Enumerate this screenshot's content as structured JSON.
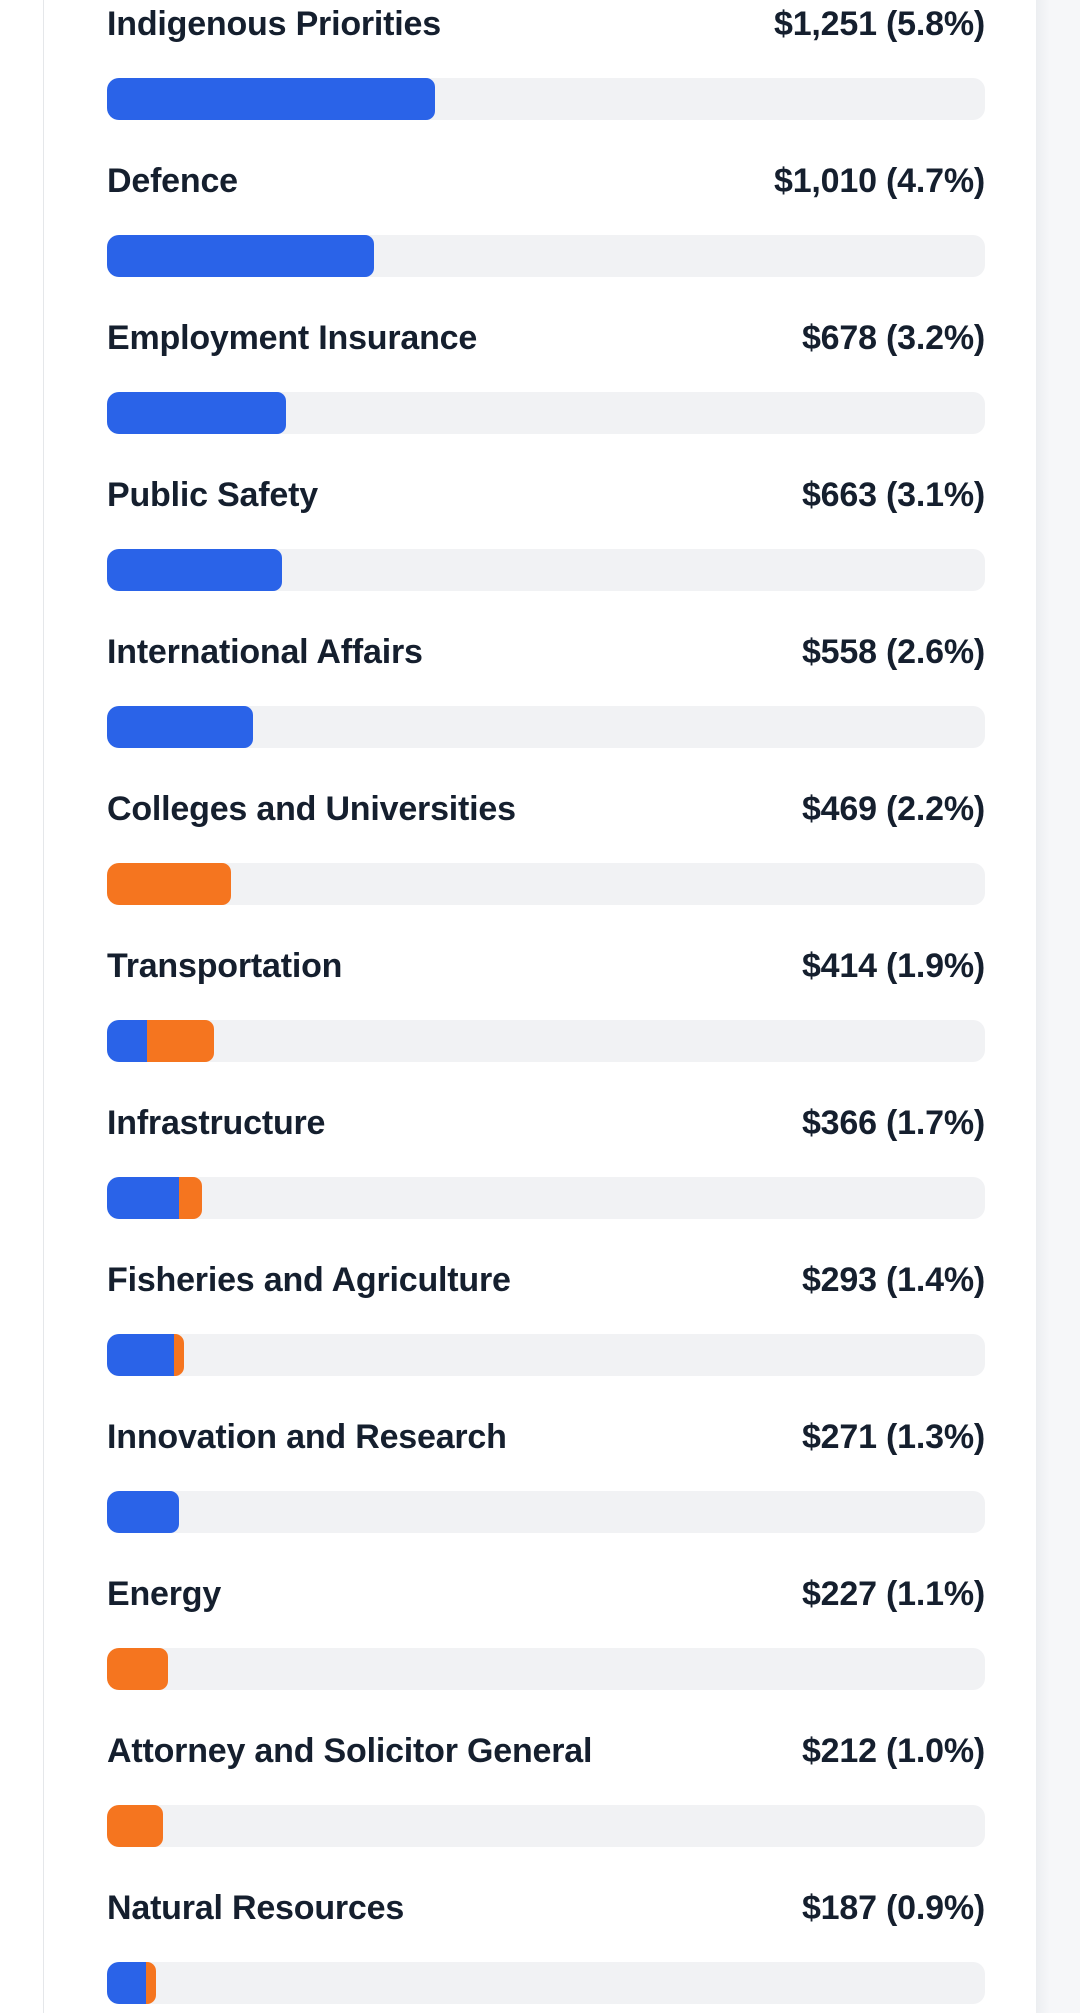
{
  "colors": {
    "blue": "#2a63e8",
    "orange": "#f5751f",
    "track": "#f1f2f4",
    "label_text": "#151f2e",
    "card_background": "#ffffff",
    "card_border": "#e5e7ea",
    "page_gutter": "#f6f7f9"
  },
  "rows": [
    {
      "label": "Indigenous Priorities",
      "value_text": "$1,251 (5.8%)",
      "segments": [
        {
          "color": "blue",
          "width_pct": 37.4
        }
      ]
    },
    {
      "label": "Defence",
      "value_text": "$1,010 (4.7%)",
      "segments": [
        {
          "color": "blue",
          "width_pct": 30.4
        }
      ]
    },
    {
      "label": "Employment Insurance",
      "value_text": "$678 (3.2%)",
      "segments": [
        {
          "color": "blue",
          "width_pct": 20.4
        }
      ]
    },
    {
      "label": "Public Safety",
      "value_text": "$663 (3.1%)",
      "segments": [
        {
          "color": "blue",
          "width_pct": 19.9
        }
      ]
    },
    {
      "label": "International Affairs",
      "value_text": "$558 (2.6%)",
      "segments": [
        {
          "color": "blue",
          "width_pct": 16.6
        }
      ]
    },
    {
      "label": "Colleges and Universities",
      "value_text": "$469 (2.2%)",
      "segments": [
        {
          "color": "orange",
          "width_pct": 14.1
        }
      ]
    },
    {
      "label": "Transportation",
      "value_text": "$414 (1.9%)",
      "segments": [
        {
          "color": "blue",
          "width_pct": 4.6
        },
        {
          "color": "orange",
          "width_pct": 7.6
        }
      ]
    },
    {
      "label": "Infrastructure",
      "value_text": "$366 (1.7%)",
      "segments": [
        {
          "color": "blue",
          "width_pct": 8.2
        },
        {
          "color": "orange",
          "width_pct": 2.6
        }
      ]
    },
    {
      "label": "Fisheries and Agriculture",
      "value_text": "$293 (1.4%)",
      "segments": [
        {
          "color": "blue",
          "width_pct": 7.6
        },
        {
          "color": "orange",
          "width_pct": 1.2
        }
      ]
    },
    {
      "label": "Innovation and Research",
      "value_text": "$271 (1.3%)",
      "segments": [
        {
          "color": "blue",
          "width_pct": 8.2
        }
      ]
    },
    {
      "label": "Energy",
      "value_text": "$227 (1.1%)",
      "segments": [
        {
          "color": "orange",
          "width_pct": 6.9
        }
      ]
    },
    {
      "label": "Attorney and Solicitor General",
      "value_text": "$212 (1.0%)",
      "segments": [
        {
          "color": "orange",
          "width_pct": 6.4
        }
      ]
    },
    {
      "label": "Natural Resources",
      "value_text": "$187 (0.9%)",
      "segments": [
        {
          "color": "blue",
          "width_pct": 4.4
        },
        {
          "color": "orange",
          "width_pct": 1.2
        }
      ]
    }
  ],
  "chart_data": {
    "type": "bar",
    "orientation": "horizontal",
    "categories": [
      "Indigenous Priorities",
      "Defence",
      "Employment Insurance",
      "Public Safety",
      "International Affairs",
      "Colleges and Universities",
      "Transportation",
      "Infrastructure",
      "Fisheries and Agriculture",
      "Innovation and Research",
      "Energy",
      "Attorney and Solicitor General",
      "Natural Resources"
    ],
    "dollar_values": [
      1251,
      1010,
      678,
      663,
      558,
      469,
      414,
      366,
      293,
      271,
      227,
      212,
      187
    ],
    "pct_of_total": [
      5.8,
      4.7,
      3.2,
      3.1,
      2.6,
      2.2,
      1.9,
      1.7,
      1.4,
      1.3,
      1.1,
      1.0,
      0.9
    ],
    "value_labels": [
      "$1,251 (5.8%)",
      "$1,010 (4.7%)",
      "$678 (3.2%)",
      "$663 (3.1%)",
      "$558 (2.6%)",
      "$469 (2.2%)",
      "$414 (1.9%)",
      "$366 (1.7%)",
      "$293 (1.4%)",
      "$271 (1.3%)",
      "$227 (1.1%)",
      "$212 (1.0%)",
      "$187 (0.9%)"
    ],
    "series": [
      {
        "name": "blue",
        "bar_fill_pct_of_track": [
          37.4,
          30.4,
          20.4,
          19.9,
          16.6,
          0,
          4.6,
          8.2,
          7.6,
          8.2,
          0,
          0,
          4.4
        ]
      },
      {
        "name": "orange",
        "bar_fill_pct_of_track": [
          0,
          0,
          0,
          0,
          0,
          14.1,
          7.6,
          2.6,
          1.2,
          0,
          6.9,
          6.4,
          1.2
        ]
      }
    ],
    "legend_position": "none",
    "grid": false,
    "notes": "Bar fill is proportional to category share; value label right-aligned to track edge."
  }
}
